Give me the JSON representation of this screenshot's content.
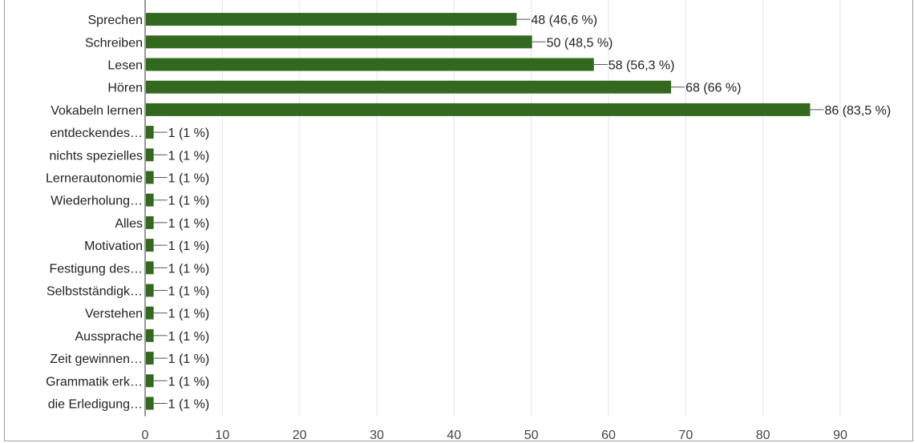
{
  "chart_data": {
    "type": "bar",
    "orientation": "horizontal",
    "categories": [
      "Sprechen",
      "Schreiben",
      "Lesen",
      "Hören",
      "Vokabeln lernen",
      "entdeckendes…",
      "nichts spezielles",
      "Lernerautonomie",
      "Wiederholung…",
      "Alles",
      "Motivation",
      "Festigung des…",
      "Selbstständigk…",
      "Verstehen",
      "Aussprache",
      "Zeit gewinnen…",
      "Grammatik erk…",
      "die Erledigung…"
    ],
    "values": [
      48,
      50,
      58,
      68,
      86,
      1,
      1,
      1,
      1,
      1,
      1,
      1,
      1,
      1,
      1,
      1,
      1,
      1
    ],
    "value_labels": [
      "48 (46,6 %)",
      "50 (48,5 %)",
      "58 (56,3 %)",
      "68 (66 %)",
      "86 (83,5 %)",
      "1 (1 %)",
      "1 (1 %)",
      "1 (1 %)",
      "1 (1 %)",
      "1 (1 %)",
      "1 (1 %)",
      "1 (1 %)",
      "1 (1 %)",
      "1 (1 %)",
      "1 (1 %)",
      "1 (1 %)",
      "1 (1 %)",
      "1 (1 %)"
    ],
    "xlim": [
      0,
      90
    ],
    "x_ticks": [
      0,
      10,
      20,
      30,
      40,
      50,
      60,
      70,
      80,
      90
    ],
    "grid": true,
    "bar_color": "#33691e",
    "title": "",
    "xlabel": "",
    "ylabel": ""
  }
}
